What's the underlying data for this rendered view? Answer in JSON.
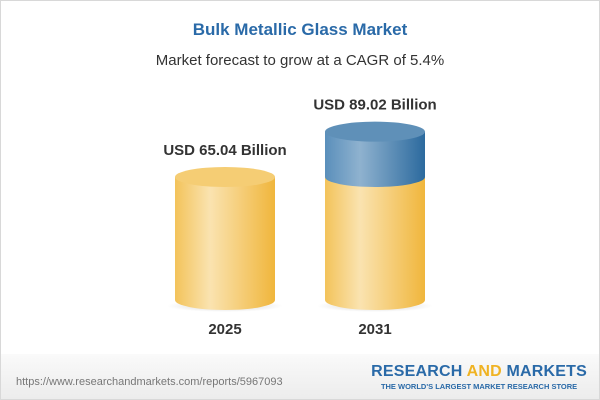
{
  "title": "Bulk Metallic Glass Market",
  "subtitle": "Market forecast to grow at a CAGR of 5.4%",
  "chart_data": {
    "type": "bar",
    "style": "3d-cylinder",
    "categories": [
      "2025",
      "2031"
    ],
    "values": [
      65.04,
      89.02
    ],
    "data_labels": [
      "USD 65.04 Billion",
      "USD 89.02 Billion"
    ],
    "unit": "USD Billion",
    "cagr": "5.4%",
    "colors": {
      "base": "#f2c45a",
      "growth": "#3f7fb0"
    }
  },
  "footer": {
    "url": "https://www.researchandmarkets.com/reports/5967093",
    "logo": {
      "part1": "RESEARCH ",
      "part2": "AND",
      "part3": " MARKETS",
      "tagline": "THE WORLD'S LARGEST MARKET RESEARCH STORE"
    }
  }
}
